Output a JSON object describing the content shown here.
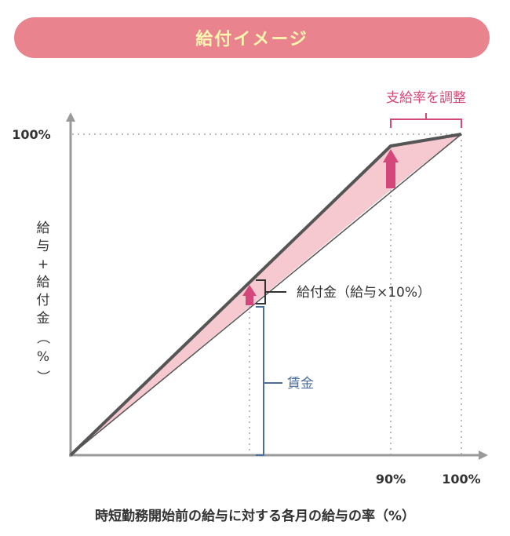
{
  "header": {
    "title": "給付イメージ"
  },
  "adjust_label": "支給率を調整",
  "benefit_label": "給付金（給与×10%）",
  "wage_label": "賃金",
  "y_axis": {
    "tick_100": "100%",
    "label_chars": [
      "給",
      "与",
      "+",
      "給",
      "付",
      "金",
      "（",
      "%",
      "）"
    ]
  },
  "x_axis": {
    "tick_90": "90%",
    "tick_100": "100%",
    "label": "時短勤務開始前の給与に対する各月の給与の率（%）"
  },
  "colors": {
    "header_bg": "#e9848e",
    "header_text": "#fff6b0",
    "accent": "#d4477a",
    "fill": "#f6c9d1",
    "line": "#555555",
    "axis": "#9a9a9a",
    "blue": "#4a6f9a"
  }
}
